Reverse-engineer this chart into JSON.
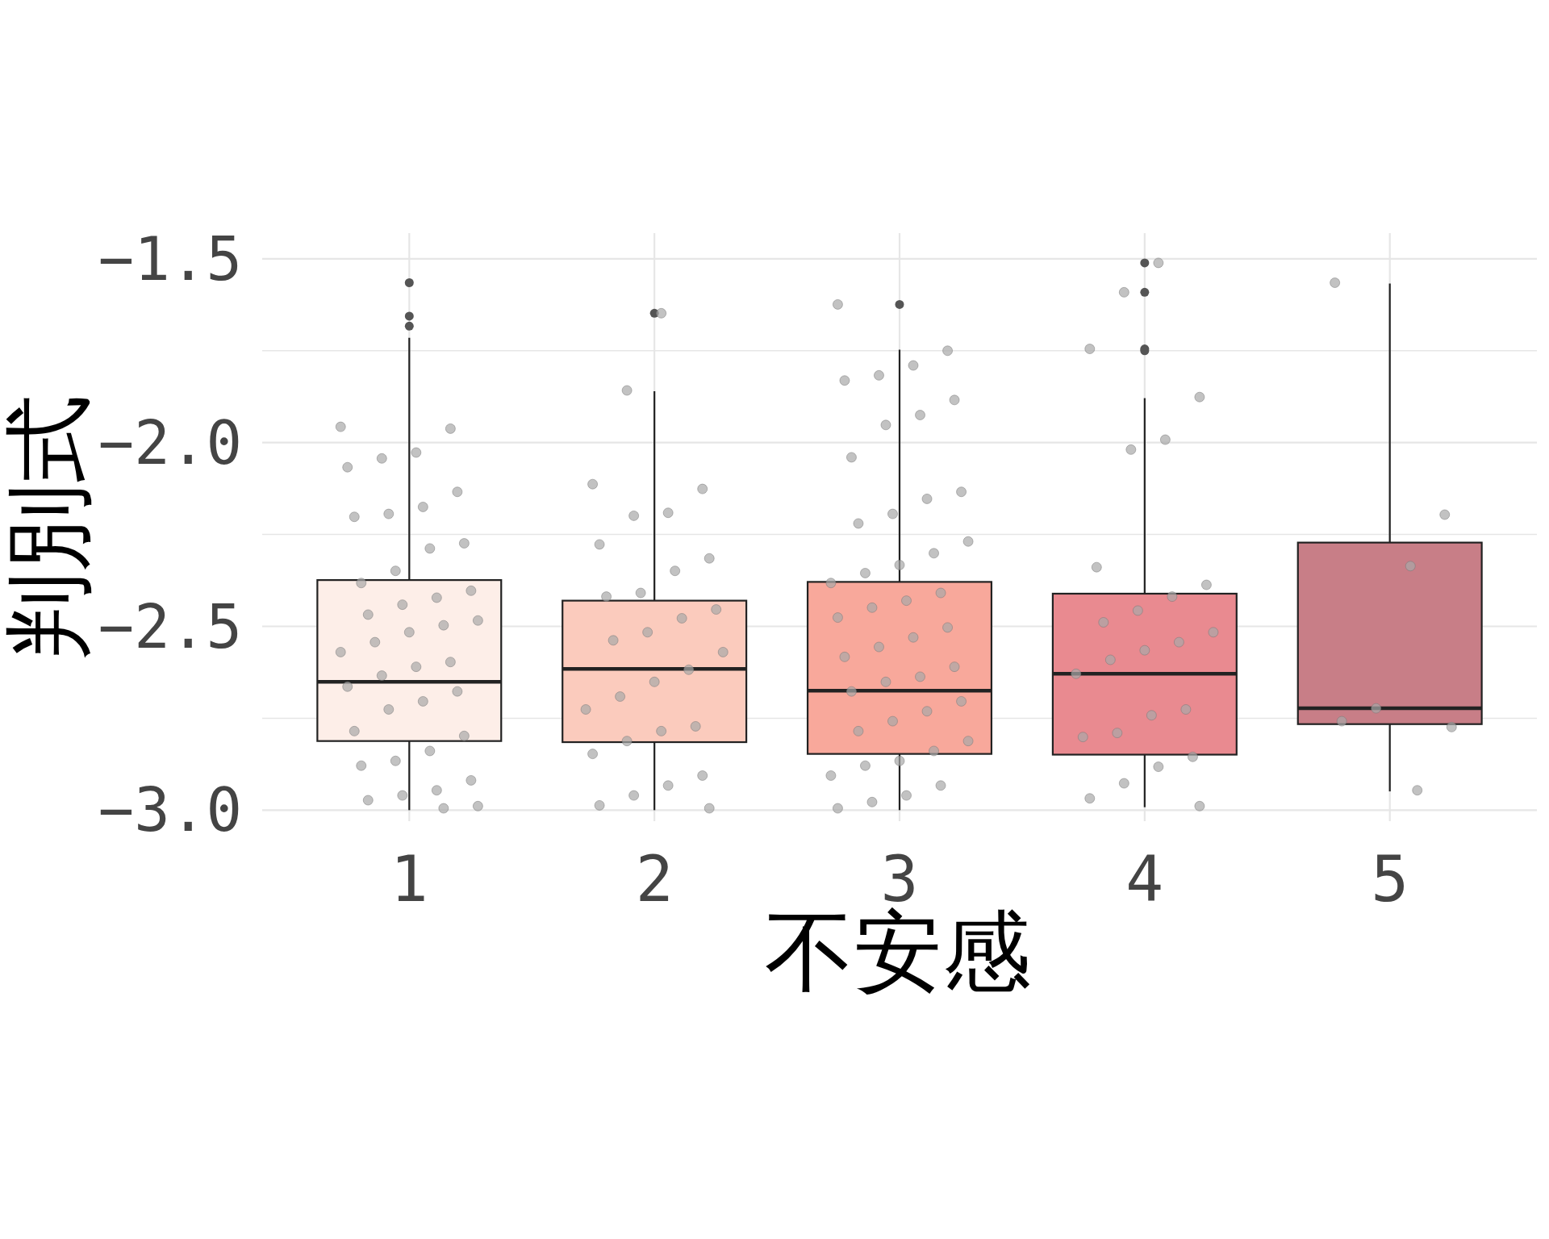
{
  "chart_data": {
    "type": "box",
    "xlabel": "不安感",
    "ylabel": "判別式",
    "categories": [
      "1",
      "2",
      "3",
      "4",
      "5"
    ],
    "colors": [
      "#fdeee8",
      "#fbcbbd",
      "#f8a89b",
      "#e98a90",
      "#c87e87"
    ],
    "boxes": [
      {
        "low": -3.0,
        "q1": -2.812,
        "median": -2.651,
        "q3": -2.374,
        "high": -1.715,
        "outliers": [
          -1.565,
          -1.656,
          -1.683
        ]
      },
      {
        "low": -3.0,
        "q1": -2.815,
        "median": -2.616,
        "q3": -2.43,
        "high": -1.86,
        "outliers": [
          -1.648
        ]
      },
      {
        "low": -3.0,
        "q1": -2.847,
        "median": -2.675,
        "q3": -2.379,
        "high": -1.747,
        "outliers": [
          -1.624
        ]
      },
      {
        "low": -2.992,
        "q1": -2.849,
        "median": -2.629,
        "q3": -2.411,
        "high": -1.879,
        "outliers": [
          -1.511,
          -1.591,
          -1.745,
          -1.75
        ]
      },
      {
        "low": -2.949,
        "q1": -2.766,
        "median": -2.723,
        "q3": -2.272,
        "high": -1.567
      }
    ],
    "series": [
      {
        "type": "scatter",
        "color": "#a8a8a8",
        "x": [
          "1",
          "1",
          "1",
          "1",
          "1",
          "1",
          "1",
          "1",
          "1",
          "1",
          "1",
          "1",
          "1",
          "1",
          "1",
          "1",
          "1",
          "1",
          "1",
          "1",
          "1",
          "1",
          "1",
          "1",
          "1",
          "1",
          "1",
          "1",
          "1",
          "1",
          "1",
          "1",
          "1",
          "1",
          "1",
          "1",
          "1",
          "1",
          "1",
          "1"
        ],
        "values": [
          -1.957,
          -1.962,
          -2.027,
          -2.043,
          -2.067,
          -2.134,
          -2.175,
          -2.194,
          -2.202,
          -2.274,
          -2.288,
          -2.349,
          -2.382,
          -2.403,
          -2.422,
          -2.441,
          -2.468,
          -2.484,
          -2.497,
          -2.516,
          -2.543,
          -2.57,
          -2.597,
          -2.61,
          -2.634,
          -2.664,
          -2.677,
          -2.704,
          -2.726,
          -2.785,
          -2.798,
          -2.839,
          -2.866,
          -2.879,
          -2.919,
          -2.946,
          -2.96,
          -2.973,
          -2.989,
          -2.995
        ]
      },
      {
        "type": "scatter",
        "color": "#a8a8a8",
        "x": [
          "2",
          "2",
          "2",
          "2",
          "2",
          "2",
          "2",
          "2",
          "2",
          "2",
          "2",
          "2",
          "2",
          "2",
          "2",
          "2",
          "2",
          "2",
          "2",
          "2",
          "2",
          "2",
          "2",
          "2",
          "2",
          "2",
          "2",
          "2",
          "2"
        ],
        "values": [
          -1.648,
          -1.858,
          -2.113,
          -2.126,
          -2.191,
          -2.199,
          -2.277,
          -2.315,
          -2.349,
          -2.409,
          -2.419,
          -2.454,
          -2.478,
          -2.516,
          -2.538,
          -2.57,
          -2.618,
          -2.651,
          -2.691,
          -2.726,
          -2.772,
          -2.785,
          -2.812,
          -2.847,
          -2.906,
          -2.933,
          -2.96,
          -2.987,
          -2.995
        ]
      },
      {
        "type": "scatter",
        "color": "#a8a8a8",
        "x": [
          "3",
          "3",
          "3",
          "3",
          "3",
          "3",
          "3",
          "3",
          "3",
          "3",
          "3",
          "3",
          "3",
          "3",
          "3",
          "3",
          "3",
          "3",
          "3",
          "3",
          "3",
          "3",
          "3",
          "3",
          "3",
          "3",
          "3",
          "3",
          "3",
          "3",
          "3",
          "3",
          "3",
          "3",
          "3",
          "3",
          "3",
          "3",
          "3",
          "3",
          "3",
          "3",
          "3"
        ],
        "values": [
          -1.624,
          -1.75,
          -1.79,
          -1.817,
          -1.831,
          -1.884,
          -1.925,
          -1.952,
          -2.04,
          -2.134,
          -2.153,
          -2.194,
          -2.22,
          -2.269,
          -2.301,
          -2.333,
          -2.355,
          -2.382,
          -2.409,
          -2.43,
          -2.449,
          -2.476,
          -2.503,
          -2.53,
          -2.556,
          -2.583,
          -2.61,
          -2.637,
          -2.651,
          -2.677,
          -2.704,
          -2.731,
          -2.758,
          -2.785,
          -2.812,
          -2.839,
          -2.866,
          -2.879,
          -2.906,
          -2.933,
          -2.96,
          -2.978,
          -2.995
        ]
      },
      {
        "type": "scatter",
        "color": "#a8a8a8",
        "x": [
          "4",
          "4",
          "4",
          "4",
          "4",
          "4",
          "4",
          "4",
          "4",
          "4",
          "4",
          "4",
          "4",
          "4",
          "4",
          "4",
          "4",
          "4",
          "4",
          "4",
          "4",
          "4",
          "4",
          "4",
          "4"
        ],
        "values": [
          -1.511,
          -1.591,
          -1.745,
          -1.876,
          -1.992,
          -2.019,
          -2.339,
          -2.387,
          -2.419,
          -2.457,
          -2.489,
          -2.516,
          -2.543,
          -2.565,
          -2.591,
          -2.629,
          -2.726,
          -2.742,
          -2.79,
          -2.801,
          -2.855,
          -2.882,
          -2.927,
          -2.968,
          -2.989
        ]
      },
      {
        "type": "scatter",
        "color": "#a8a8a8",
        "x": [
          "5",
          "5",
          "5",
          "5",
          "5",
          "5",
          "5"
        ],
        "values": [
          -1.565,
          -2.196,
          -2.336,
          -2.723,
          -2.758,
          -2.774,
          -2.946
        ]
      }
    ],
    "ylim": [
      -3.03,
      -1.43
    ],
    "yticks": [
      {
        "value": -3.0,
        "label": "−3.0"
      },
      {
        "value": -2.75,
        "label": null
      },
      {
        "value": -2.5,
        "label": "−2.5"
      },
      {
        "value": -2.25,
        "label": null
      },
      {
        "value": -2.0,
        "label": "−2.0"
      },
      {
        "value": -1.75,
        "label": null
      },
      {
        "value": -1.5,
        "label": "−1.5"
      }
    ],
    "grid": true
  }
}
